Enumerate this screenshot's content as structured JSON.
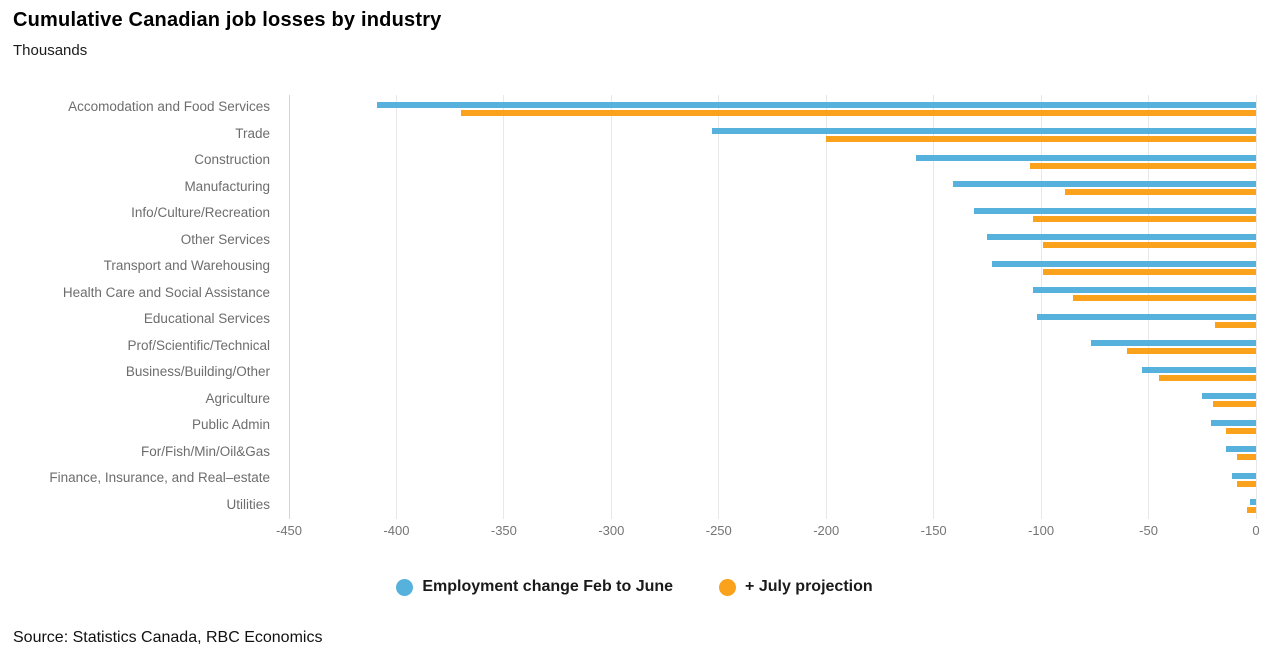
{
  "title": "Cumulative Canadian job losses by industry",
  "subtitle": "Thousands",
  "source": "Source: Statistics Canada, RBC Economics",
  "colors": {
    "feb_june_blue": "#56b2dc",
    "july_orange": "#faa21b",
    "gridline": "#e8e8e8",
    "axis_line": "#c9d6e8",
    "category_label": "#6d6d6d",
    "tick_label": "#757575"
  },
  "chart_data": {
    "type": "bar",
    "orientation": "horizontal",
    "title": "Cumulative Canadian job losses by industry",
    "subtitle": "Thousands",
    "xlabel": "",
    "ylabel": "",
    "units": "Thousands",
    "xlim": [
      -450,
      0
    ],
    "grid": true,
    "legend_position": "bottom",
    "xticks": [
      -450,
      -400,
      -350,
      -300,
      -250,
      -200,
      -150,
      -100,
      -50,
      0
    ],
    "xtick_labels": [
      "-450",
      "-400",
      "-350",
      "-300",
      "-250",
      "-200",
      "-150",
      "-100",
      "-50",
      "0"
    ],
    "categories": [
      "Accomodation and Food Services",
      "Trade",
      "Construction",
      "Manufacturing",
      "Info/Culture/Recreation",
      "Other Services",
      "Transport and Warehousing",
      "Health Care and Social Assistance",
      "Educational Services",
      "Prof/Scientific/Technical",
      "Business/Building/Other",
      "Agriculture",
      "Public Admin",
      "For/Fish/Min/Oil&Gas",
      "Finance, Insurance, and Real–estate",
      "Utilities"
    ],
    "series": [
      {
        "name": "Employment change Feb to June",
        "color": "#56b2dc",
        "values": [
          -409,
          -253,
          -158,
          -141,
          -131,
          -125,
          -123,
          -104,
          -102,
          -77,
          -53,
          -25,
          -21,
          -14,
          -11,
          -3
        ]
      },
      {
        "name": "+ July projection",
        "color": "#faa21b",
        "values": [
          -370,
          -200,
          -105,
          -89,
          -104,
          -99,
          -99,
          -85,
          -19,
          -60,
          -45,
          -20,
          -14,
          -9,
          -9,
          -4
        ]
      }
    ]
  }
}
